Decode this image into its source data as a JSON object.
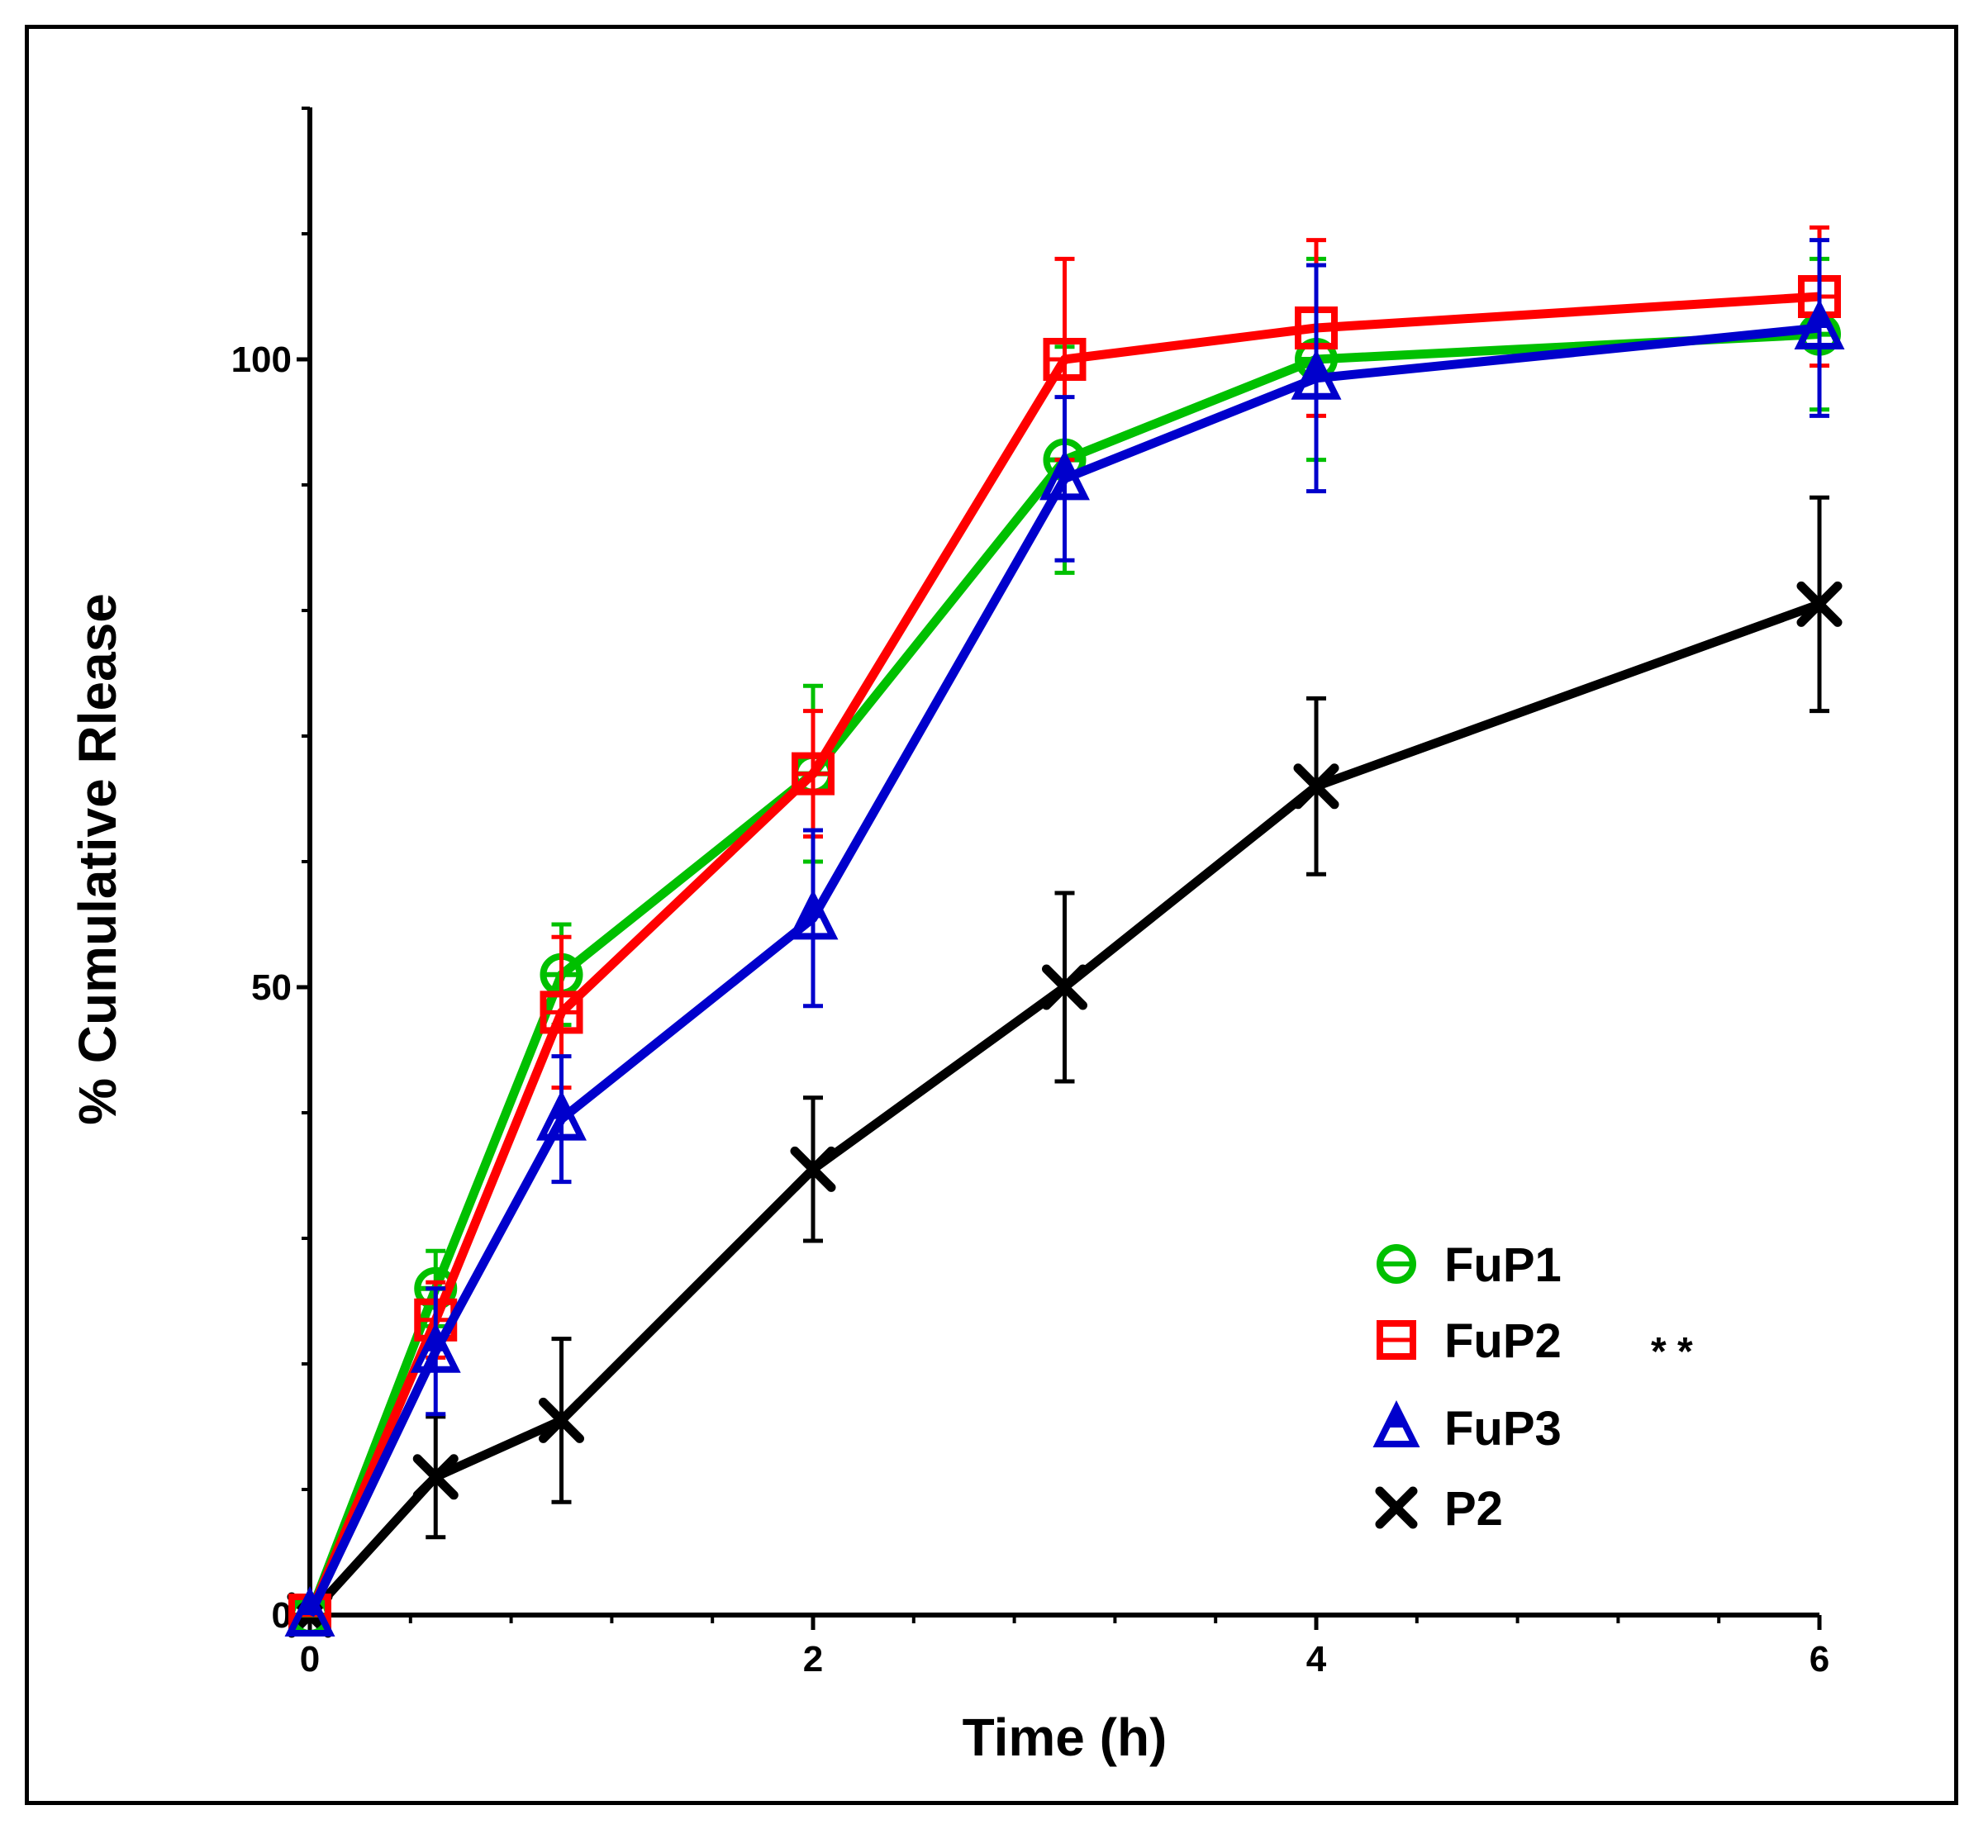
{
  "chart_data": {
    "type": "line",
    "title": "",
    "xlabel": "Time (h)",
    "ylabel": "% Cumulative Rlease",
    "xlim": [
      0,
      6
    ],
    "ylim": [
      0,
      120
    ],
    "xticks": [
      0,
      2,
      4,
      6
    ],
    "xtick_labels": [
      "0",
      "2",
      "4",
      "6"
    ],
    "yticks": [
      0,
      50,
      100
    ],
    "ytick_labels": [
      "0",
      "50",
      "100"
    ],
    "x": [
      0,
      0.5,
      1,
      2,
      3,
      4,
      6
    ],
    "legend_position": "bottom-right",
    "significance_note": "* *",
    "series": [
      {
        "name": "FuP1",
        "color": "#00c000",
        "marker": "circle",
        "values": [
          0,
          26,
          51,
          67,
          92,
          100,
          102
        ],
        "errors": [
          0,
          3,
          4,
          7,
          9,
          8,
          6
        ]
      },
      {
        "name": "FuP2",
        "color": "#ff0000",
        "marker": "square",
        "values": [
          0,
          23.5,
          48,
          67,
          100,
          102.5,
          105
        ],
        "errors": [
          0,
          3,
          6,
          5,
          8,
          7,
          5.5
        ]
      },
      {
        "name": "FuP3",
        "color": "#0000cc",
        "marker": "triangle",
        "values": [
          0,
          21,
          39.5,
          55.5,
          90.5,
          98.5,
          102.5
        ],
        "errors": [
          0,
          5,
          5,
          7,
          6.5,
          9,
          7
        ]
      },
      {
        "name": "P2",
        "color": "#000000",
        "marker": "x",
        "values": [
          0,
          11,
          15.5,
          35.5,
          50,
          66,
          80.5
        ],
        "errors": [
          0,
          4.8,
          6.5,
          5.7,
          7.5,
          7,
          8.5
        ]
      }
    ]
  }
}
